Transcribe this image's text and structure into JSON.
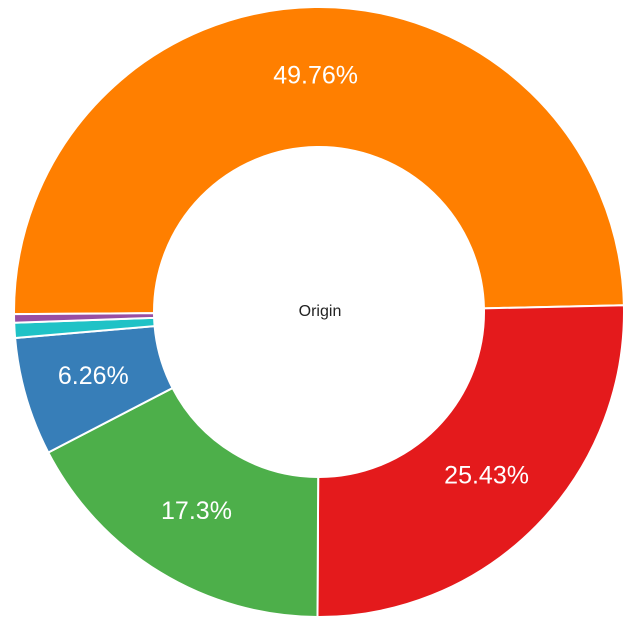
{
  "chart_data": {
    "type": "donut",
    "center_label": "Origin",
    "values": [
      49.76,
      25.43,
      17.3,
      6.26,
      0.8,
      0.45
    ],
    "value_labels": [
      "49.76%",
      "25.43%",
      "17.3%",
      "6.26%",
      null,
      null
    ],
    "colors": [
      "#ff7f00",
      "#e41a1c",
      "#4daf4a",
      "#377eb8",
      "#1fc2c6",
      "#984ea3"
    ]
  }
}
